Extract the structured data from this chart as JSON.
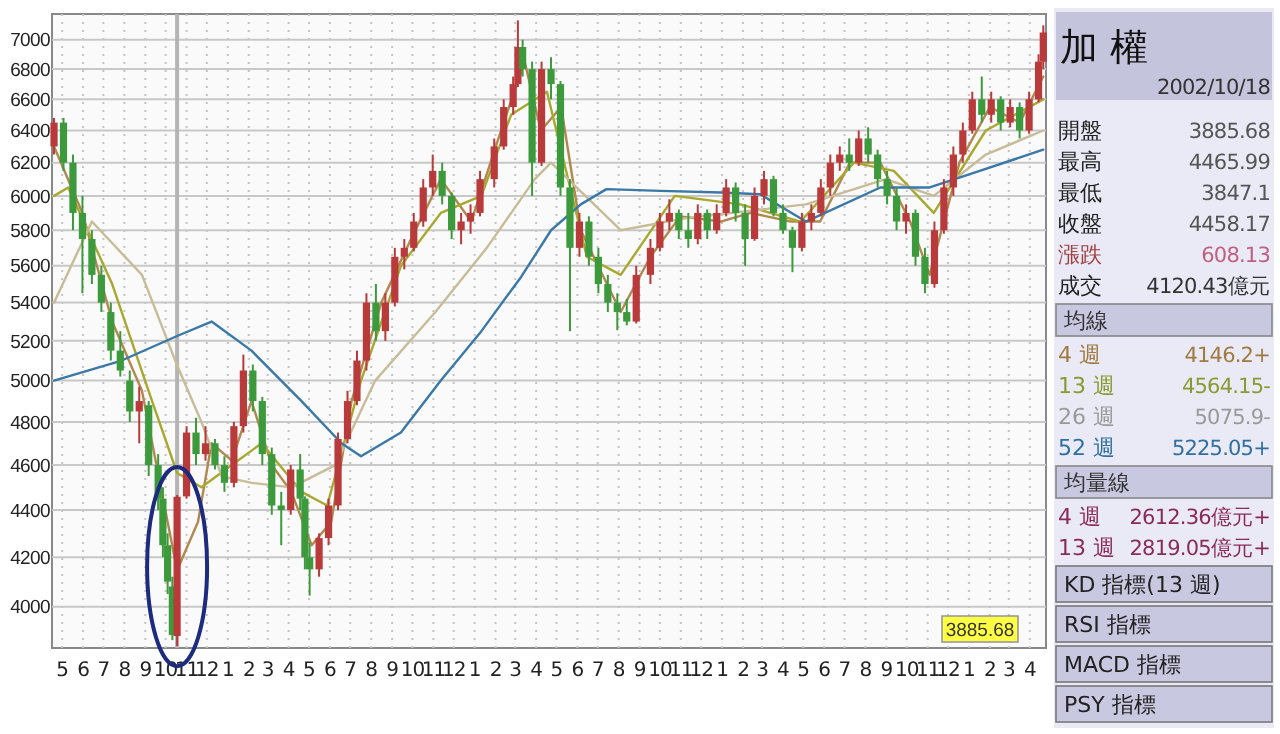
{
  "chart_data": [
    {
      "type": "candlestick",
      "x": [
        "2002-04-19",
        "2002-05-03",
        "2002-05-17",
        "2002-05-31",
        "2002-06-14",
        "2002-06-28",
        "2002-07-12",
        "2002-07-26",
        "2002-08-09",
        "2002-08-23",
        "2002-09-06",
        "2002-09-20",
        "2002-09-27",
        "2002-10-04",
        "2002-10-11",
        "2002-10-18",
        "2002-11-01",
        "2002-11-15",
        "2002-11-29",
        "2002-12-13",
        "2002-12-27",
        "2003-01-10",
        "2003-01-24",
        "2003-02-07",
        "2003-02-21",
        "2003-03-07",
        "2003-03-21",
        "2003-04-04",
        "2003-04-18",
        "2003-04-25",
        "2003-05-02",
        "2003-05-16",
        "2003-05-30",
        "2003-06-13",
        "2003-06-27",
        "2003-07-11",
        "2003-07-25",
        "2003-08-08",
        "2003-08-22",
        "2003-09-05",
        "2003-09-19",
        "2003-10-03",
        "2003-10-17",
        "2003-10-31",
        "2003-11-14",
        "2003-11-28",
        "2003-12-12",
        "2003-12-26",
        "2004-01-09",
        "2004-01-30",
        "2004-02-13",
        "2004-02-27",
        "2004-03-05",
        "2004-03-12",
        "2004-03-26",
        "2004-04-09",
        "2004-04-23",
        "2004-05-07",
        "2004-05-21",
        "2004-06-04",
        "2004-06-18",
        "2004-07-02",
        "2004-07-16",
        "2004-07-30",
        "2004-08-13",
        "2004-08-27",
        "2004-09-17",
        "2004-10-01",
        "2004-10-15",
        "2004-10-29",
        "2004-11-12",
        "2004-11-26",
        "2004-12-10",
        "2004-12-24",
        "2005-01-07",
        "2005-01-21",
        "2005-02-04",
        "2005-02-18",
        "2005-03-04",
        "2005-03-18",
        "2005-04-01",
        "2005-04-15",
        "2005-04-29",
        "2005-05-13",
        "2005-05-27",
        "2005-06-10",
        "2005-06-24",
        "2005-07-08",
        "2005-07-22",
        "2005-08-05",
        "2005-08-19",
        "2005-09-02",
        "2005-09-16",
        "2005-09-30",
        "2005-10-14",
        "2005-10-28",
        "2005-11-11",
        "2005-11-25",
        "2005-12-09",
        "2005-12-23",
        "2006-01-06",
        "2006-01-20",
        "2006-02-03",
        "2006-02-17",
        "2006-03-03",
        "2006-03-17",
        "2006-03-31",
        "2006-04-14",
        "2006-04-21"
      ],
      "ohlc": [
        [
          6300,
          6480,
          6250,
          6450
        ],
        [
          6450,
          6480,
          6150,
          6200
        ],
        [
          6200,
          6250,
          5800,
          5900
        ],
        [
          5900,
          6000,
          5450,
          5750
        ],
        [
          5750,
          5800,
          5500,
          5550
        ],
        [
          5550,
          5600,
          5350,
          5400
        ],
        [
          5350,
          5400,
          5100,
          5150
        ],
        [
          5150,
          5250,
          5020,
          5050
        ],
        [
          5000,
          5050,
          4800,
          4850
        ],
        [
          4850,
          4970,
          4700,
          4900
        ],
        [
          4880,
          4900,
          4550,
          4600
        ],
        [
          4600,
          4650,
          4400,
          4450
        ],
        [
          4450,
          4500,
          4200,
          4250
        ],
        [
          4250,
          4300,
          4050,
          4100
        ],
        [
          4080,
          4120,
          3870,
          3890
        ],
        [
          3885.68,
          4465.99,
          3847.1,
          4458.17
        ],
        [
          4460,
          4780,
          4450,
          4750
        ],
        [
          4750,
          4820,
          4600,
          4650
        ],
        [
          4650,
          4780,
          4620,
          4700
        ],
        [
          4700,
          4720,
          4580,
          4600
        ],
        [
          4600,
          4640,
          4480,
          4520
        ],
        [
          4520,
          4800,
          4500,
          4780
        ],
        [
          4780,
          5130,
          4750,
          5050
        ],
        [
          5050,
          5080,
          4850,
          4900
        ],
        [
          4900,
          4920,
          4600,
          4650
        ],
        [
          4650,
          4680,
          4380,
          4420
        ],
        [
          4420,
          4480,
          4250,
          4400
        ],
        [
          4400,
          4600,
          4380,
          4580
        ],
        [
          4580,
          4650,
          4400,
          4450
        ],
        [
          4450,
          4460,
          4150,
          4200
        ],
        [
          4200,
          4260,
          4044,
          4150
        ],
        [
          4150,
          4300,
          4120,
          4280
        ],
        [
          4280,
          4450,
          4250,
          4420
        ],
        [
          4420,
          4750,
          4400,
          4720
        ],
        [
          4720,
          4950,
          4700,
          4900
        ],
        [
          4900,
          5150,
          4880,
          5100
        ],
        [
          5100,
          5450,
          5050,
          5400
        ],
        [
          5400,
          5500,
          5200,
          5250
        ],
        [
          5250,
          5450,
          5200,
          5400
        ],
        [
          5400,
          5700,
          5380,
          5650
        ],
        [
          5650,
          5750,
          5580,
          5700
        ],
        [
          5700,
          5900,
          5680,
          5850
        ],
        [
          5850,
          6100,
          5820,
          6050
        ],
        [
          6050,
          6250,
          6000,
          6150
        ],
        [
          6150,
          6200,
          5950,
          6000
        ],
        [
          6000,
          6020,
          5750,
          5800
        ],
        [
          5800,
          5900,
          5720,
          5850
        ],
        [
          5850,
          5950,
          5780,
          5900
        ],
        [
          5900,
          6150,
          5880,
          6100
        ],
        [
          6100,
          6350,
          6050,
          6300
        ],
        [
          6300,
          6600,
          6280,
          6550
        ],
        [
          6550,
          6750,
          6500,
          6700
        ],
        [
          6700,
          7135,
          6680,
          6950
        ],
        [
          6950,
          7000,
          6750,
          6800
        ],
        [
          6800,
          6850,
          6000,
          6200
        ],
        [
          6200,
          6850,
          6180,
          6800
        ],
        [
          6800,
          6880,
          6600,
          6700
        ],
        [
          6700,
          6720,
          6000,
          6050
        ],
        [
          6050,
          6100,
          5250,
          5700
        ],
        [
          5700,
          5900,
          5650,
          5850
        ],
        [
          5850,
          5880,
          5600,
          5650
        ],
        [
          5650,
          5700,
          5450,
          5500
        ],
        [
          5500,
          5550,
          5350,
          5400
        ],
        [
          5400,
          5450,
          5255,
          5350
        ],
        [
          5350,
          5420,
          5280,
          5300
        ],
        [
          5300,
          5600,
          5290,
          5550
        ],
        [
          5550,
          5750,
          5500,
          5700
        ],
        [
          5700,
          5900,
          5680,
          5850
        ],
        [
          5850,
          5980,
          5800,
          5900
        ],
        [
          5900,
          5920,
          5750,
          5800
        ],
        [
          5800,
          5900,
          5700,
          5750
        ],
        [
          5750,
          5950,
          5720,
          5900
        ],
        [
          5900,
          5920,
          5750,
          5800
        ],
        [
          5800,
          5950,
          5780,
          5900
        ],
        [
          5900,
          6100,
          5880,
          6050
        ],
        [
          6050,
          6080,
          5850,
          5900
        ],
        [
          5900,
          5950,
          5600,
          5750
        ],
        [
          5750,
          6050,
          5740,
          6000
        ],
        [
          6000,
          6150,
          5950,
          6100
        ],
        [
          6100,
          6120,
          5880,
          5900
        ],
        [
          5900,
          5950,
          5780,
          5800
        ],
        [
          5800,
          5820,
          5565,
          5700
        ],
        [
          5700,
          5900,
          5680,
          5850
        ],
        [
          5850,
          5950,
          5800,
          5900
        ],
        [
          5900,
          6100,
          5880,
          6050
        ],
        [
          6050,
          6250,
          6000,
          6200
        ],
        [
          6200,
          6300,
          6150,
          6250
        ],
        [
          6250,
          6350,
          6150,
          6200
        ],
        [
          6200,
          6400,
          6180,
          6350
        ],
        [
          6350,
          6420,
          6200,
          6250
        ],
        [
          6250,
          6280,
          6050,
          6100
        ],
        [
          6100,
          6150,
          5950,
          6000
        ],
        [
          6000,
          6050,
          5800,
          5850
        ],
        [
          5850,
          5950,
          5780,
          5900
        ],
        [
          5900,
          5920,
          5600,
          5650
        ],
        [
          5650,
          5700,
          5450,
          5500
        ],
        [
          5500,
          5850,
          5480,
          5800
        ],
        [
          5800,
          6100,
          5780,
          6050
        ],
        [
          6050,
          6300,
          6000,
          6250
        ],
        [
          6250,
          6450,
          6200,
          6400
        ],
        [
          6400,
          6650,
          6380,
          6600
        ],
        [
          6600,
          6750,
          6450,
          6500
        ],
        [
          6500,
          6650,
          6450,
          6600
        ],
        [
          6600,
          6620,
          6400,
          6450
        ],
        [
          6450,
          6600,
          6420,
          6550
        ],
        [
          6550,
          6580,
          6350,
          6400
        ],
        [
          6400,
          6650,
          6380,
          6600
        ],
        [
          6600,
          6900,
          6580,
          6850
        ],
        [
          6850,
          7100,
          6800,
          7050
        ]
      ],
      "colors": [
        "#b83a3a",
        "#3c9a3c",
        "#3c9a3c",
        "#3c9a3c",
        "#3c9a3c",
        "#3c9a3c",
        "#3c9a3c",
        "#3c9a3c",
        "#3c9a3c",
        "#b83a3a",
        "#3c9a3c",
        "#3c9a3c",
        "#3c9a3c",
        "#3c9a3c",
        "#3c9a3c",
        "#b83a3a",
        "#b83a3a",
        "#3c9a3c",
        "#b83a3a",
        "#3c9a3c",
        "#3c9a3c",
        "#b83a3a",
        "#b83a3a",
        "#3c9a3c",
        "#3c9a3c",
        "#3c9a3c",
        "#3c9a3c",
        "#b83a3a",
        "#3c9a3c",
        "#3c9a3c",
        "#3c9a3c",
        "#b83a3a",
        "#b83a3a",
        "#b83a3a",
        "#b83a3a",
        "#b83a3a",
        "#b83a3a",
        "#3c9a3c",
        "#b83a3a",
        "#b83a3a",
        "#b83a3a",
        "#b83a3a",
        "#b83a3a",
        "#b83a3a",
        "#3c9a3c",
        "#3c9a3c",
        "#b83a3a",
        "#b83a3a",
        "#b83a3a",
        "#b83a3a",
        "#b83a3a",
        "#b83a3a",
        "#b83a3a",
        "#3c9a3c",
        "#3c9a3c",
        "#b83a3a",
        "#3c9a3c",
        "#3c9a3c",
        "#3c9a3c",
        "#b83a3a",
        "#3c9a3c",
        "#3c9a3c",
        "#3c9a3c",
        "#3c9a3c",
        "#3c9a3c",
        "#b83a3a",
        "#b83a3a",
        "#b83a3a",
        "#b83a3a",
        "#3c9a3c",
        "#3c9a3c",
        "#b83a3a",
        "#3c9a3c",
        "#b83a3a",
        "#b83a3a",
        "#3c9a3c",
        "#3c9a3c",
        "#b83a3a",
        "#b83a3a",
        "#3c9a3c",
        "#3c9a3c",
        "#3c9a3c",
        "#b83a3a",
        "#b83a3a",
        "#b83a3a",
        "#b83a3a",
        "#b83a3a",
        "#3c9a3c",
        "#b83a3a",
        "#3c9a3c",
        "#3c9a3c",
        "#3c9a3c",
        "#3c9a3c",
        "#b83a3a",
        "#3c9a3c",
        "#3c9a3c",
        "#b83a3a",
        "#b83a3a",
        "#b83a3a",
        "#b83a3a",
        "#b83a3a",
        "#3c9a3c",
        "#b83a3a",
        "#3c9a3c",
        "#b83a3a",
        "#3c9a3c",
        "#b83a3a",
        "#b83a3a",
        "#b83a3a"
      ],
      "series": [
        {
          "type": "line",
          "color": "#b08850",
          "x": [
            "2002-04-19",
            "2002-05-31",
            "2002-07-14",
            "2002-08-27",
            "2002-10-18",
            "2002-11-18",
            "2002-12-08",
            "2003-01-07",
            "2003-02-05",
            "2003-03-07",
            "2003-04-05",
            "2003-05-05",
            "2003-06-03",
            "2003-07-03",
            "2003-08-16",
            "2003-09-29",
            "2003-11-12",
            "2003-12-27",
            "2004-02-09",
            "2004-03-15",
            "2004-04-08",
            "2004-05-08",
            "2004-06-06",
            "2004-08-04",
            "2004-09-17",
            "2004-10-31",
            "2004-12-30",
            "2005-02-12",
            "2005-04-12",
            "2005-05-26",
            "2005-07-09",
            "2005-08-23",
            "2005-10-06",
            "2005-11-04",
            "2005-12-18",
            "2006-02-01",
            "2006-03-17",
            "2006-04-21"
          ],
          "values": [
            6300,
            5900,
            5300,
            4950,
            4146.2,
            4350,
            4700,
            4620,
            4900,
            4600,
            4480,
            4250,
            4350,
            4900,
            5400,
            5750,
            6100,
            5850,
            6400,
            6850,
            6400,
            6550,
            5800,
            5350,
            5650,
            5880,
            5850,
            5900,
            5850,
            5850,
            6200,
            6200,
            5850,
            5550,
            6200,
            6550,
            6450,
            6750
          ]
        },
        {
          "type": "line",
          "color": "#a8a830",
          "x": [
            "2002-04-19",
            "2002-05-10",
            "2002-07-14",
            "2002-09-11",
            "2002-10-18",
            "2002-11-23",
            "2003-01-07",
            "2003-02-20",
            "2003-04-20",
            "2003-05-28",
            "2003-07-17",
            "2003-09-14",
            "2003-11-12",
            "2004-01-11",
            "2004-02-24",
            "2004-04-17",
            "2004-06-15",
            "2004-08-04",
            "2004-10-23",
            "2005-01-28",
            "2005-04-27",
            "2005-07-15",
            "2005-09-12",
            "2005-11-10",
            "2006-01-26",
            "2006-04-21"
          ],
          "values": [
            6000,
            6050,
            5500,
            4900,
            4564.15,
            4500,
            4600,
            4700,
            4480,
            4420,
            5000,
            5600,
            5900,
            6000,
            6500,
            6650,
            5650,
            5550,
            6000,
            5950,
            5850,
            6200,
            6150,
            5900,
            6400,
            6600
          ]
        },
        {
          "type": "line",
          "color": "#c8bc98",
          "x": [
            "2002-04-19",
            "2002-06-14",
            "2002-08-27",
            "2002-10-18",
            "2002-11-23",
            "2002-12-23",
            "2003-02-05",
            "2003-04-05",
            "2003-06-09",
            "2003-08-07",
            "2003-11-04",
            "2004-01-19",
            "2004-03-30",
            "2004-04-23",
            "2004-08-04",
            "2004-11-09",
            "2005-05-05",
            "2005-08-31",
            "2005-11-10",
            "2006-01-26",
            "2006-04-21"
          ],
          "values": [
            5400,
            5850,
            5550,
            5075.9,
            4800,
            4550,
            4520,
            4500,
            4600,
            5000,
            5350,
            5700,
            6100,
            6200,
            5800,
            5870,
            5950,
            6100,
            6000,
            6250,
            6400
          ]
        },
        {
          "type": "line",
          "color": "#3a78a8",
          "x": [
            "2002-04-19",
            "2002-07-28",
            "2002-10-18",
            "2002-12-08",
            "2003-02-05",
            "2003-04-20",
            "2003-06-18",
            "2003-07-17",
            "2003-09-14",
            "2003-11-12",
            "2004-01-11",
            "2004-03-10",
            "2004-04-23",
            "2004-06-06",
            "2004-07-14",
            "2004-10-02",
            "2004-12-30",
            "2005-02-26",
            "2005-05-05",
            "2005-08-23",
            "2005-11-04",
            "2006-01-17",
            "2006-04-21"
          ],
          "values": [
            5000,
            5100,
            5225.05,
            5300,
            5150,
            4900,
            4700,
            4640,
            4750,
            5000,
            5250,
            5540,
            5800,
            5950,
            6040,
            6030,
            6020,
            6010,
            5850,
            6050,
            6050,
            6150,
            6280
          ]
        }
      ],
      "log": true,
      "ylim": [
        3840,
        7180
      ],
      "yticks": [
        4000,
        4200,
        4400,
        4600,
        4800,
        5000,
        5200,
        5400,
        5600,
        5800,
        6000,
        6200,
        6400,
        6600,
        6800,
        7000
      ],
      "xlim": [
        "2002-04-16",
        "2006-04-25"
      ],
      "xticks": [
        {
          "value": "2002-05-01",
          "label": "5"
        },
        {
          "value": "2002-06-01",
          "label": "6"
        },
        {
          "value": "2002-07-01",
          "label": "7"
        },
        {
          "value": "2002-08-01",
          "label": "8"
        },
        {
          "value": "2002-09-01",
          "label": "9"
        },
        {
          "value": "2002-10-01",
          "label": "10"
        },
        {
          "value": "2002-11-01",
          "label": "11"
        },
        {
          "value": "2002-12-01",
          "label": "12"
        },
        {
          "value": "2003-01-01",
          "label": "1"
        },
        {
          "value": "2003-02-01",
          "label": "2"
        },
        {
          "value": "2003-03-01",
          "label": "3"
        },
        {
          "value": "2003-04-01",
          "label": "4"
        },
        {
          "value": "2003-05-01",
          "label": "5"
        },
        {
          "value": "2003-06-01",
          "label": "6"
        },
        {
          "value": "2003-07-01",
          "label": "7"
        },
        {
          "value": "2003-08-01",
          "label": "8"
        },
        {
          "value": "2003-09-01",
          "label": "9"
        },
        {
          "value": "2003-10-01",
          "label": "10"
        },
        {
          "value": "2003-11-01",
          "label": "11"
        },
        {
          "value": "2003-12-01",
          "label": "12"
        },
        {
          "value": "2004-01-01",
          "label": "1"
        },
        {
          "value": "2004-02-01",
          "label": "2"
        },
        {
          "value": "2004-03-01",
          "label": "3"
        },
        {
          "value": "2004-04-01",
          "label": "4"
        },
        {
          "value": "2004-05-01",
          "label": "5"
        },
        {
          "value": "2004-06-01",
          "label": "6"
        },
        {
          "value": "2004-07-01",
          "label": "7"
        },
        {
          "value": "2004-08-01",
          "label": "8"
        },
        {
          "value": "2004-09-01",
          "label": "9"
        },
        {
          "value": "2004-10-01",
          "label": "10"
        },
        {
          "value": "2004-11-01",
          "label": "11"
        },
        {
          "value": "2004-12-01",
          "label": "12"
        },
        {
          "value": "2005-01-01",
          "label": "1"
        },
        {
          "value": "2005-02-01",
          "label": "2"
        },
        {
          "value": "2005-03-01",
          "label": "3"
        },
        {
          "value": "2005-04-01",
          "label": "4"
        },
        {
          "value": "2005-05-01",
          "label": "5"
        },
        {
          "value": "2005-06-01",
          "label": "6"
        },
        {
          "value": "2005-07-01",
          "label": "7"
        },
        {
          "value": "2005-08-01",
          "label": "8"
        },
        {
          "value": "2005-09-01",
          "label": "9"
        },
        {
          "value": "2005-10-01",
          "label": "10"
        },
        {
          "value": "2005-11-01",
          "label": "11"
        },
        {
          "value": "2005-12-01",
          "label": "12"
        },
        {
          "value": "2006-01-01",
          "label": "1"
        },
        {
          "value": "2006-02-01",
          "label": "2"
        },
        {
          "value": "2006-03-01",
          "label": "3"
        },
        {
          "value": "2006-04-01",
          "label": "4"
        }
      ],
      "grid": true,
      "ref_lines": [
        {
          "axis": "x",
          "value": "2002-10-18",
          "color": "#b4b4b4"
        }
      ],
      "annotations": [
        "3885.68"
      ]
    },
    {
      "type": "other",
      "title": "加 權",
      "subtitle": "2002/10/18",
      "annotations": [
        "開盤",
        "3885.68",
        "最高",
        "4465.99",
        "最低",
        "3847.1",
        "收盤",
        "4458.17",
        "漲跌",
        "608.13",
        "成交",
        "4120.43億元",
        "均線",
        "4 週",
        "4146.2+",
        "13 週",
        "4564.15-",
        "26 週",
        "5075.9-",
        "52 週",
        "5225.05+",
        "均量線",
        "4 週",
        "2612.36億元+",
        "13 週",
        "2819.05億元+",
        "KD 指標(13 週)",
        "RSI 指標",
        "MACD 指標",
        "PSY 指標"
      ]
    }
  ]
}
